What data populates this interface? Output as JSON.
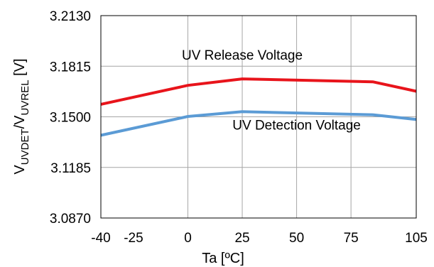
{
  "chart_data": {
    "type": "line",
    "title": "",
    "xlabel": "Ta [ºC]",
    "ylabel": {
      "main1": "V",
      "sub1": "UVDET",
      "main2": "/V",
      "sub2": "UVREL",
      "suffix": " [V]"
    },
    "xlim": [
      -40,
      105
    ],
    "ylim": [
      3.087,
      3.213
    ],
    "x_ticks": [
      -40,
      -25,
      0,
      25,
      50,
      75,
      105
    ],
    "x_tick_labels": [
      "-40",
      "-25",
      "0",
      "25",
      "50",
      "75",
      "105"
    ],
    "x_grid": [
      -40,
      0,
      25,
      50,
      75,
      105
    ],
    "y_ticks": [
      3.087,
      3.1185,
      3.15,
      3.1815,
      3.213
    ],
    "y_tick_labels": [
      "3.0870",
      "3.1185",
      "3.1500",
      "3.1815",
      "3.2130"
    ],
    "grid": true,
    "legend": "none",
    "series": [
      {
        "color": "#e8141b",
        "x": [
          -40,
          0,
          25,
          85,
          105
        ],
        "y": [
          3.1578,
          3.1696,
          3.1736,
          3.1718,
          3.1659
        ]
      },
      {
        "color": "#5b9bd5",
        "x": [
          -40,
          0,
          25,
          85,
          105
        ],
        "y": [
          3.1385,
          3.1502,
          3.1532,
          3.1513,
          3.1483
        ]
      }
    ],
    "annotations": [
      {
        "text": "UV Release Voltage",
        "x": 25,
        "y": 3.1855
      },
      {
        "text": "UV Detection Voltage",
        "x": 50,
        "y": 3.142
      }
    ]
  }
}
